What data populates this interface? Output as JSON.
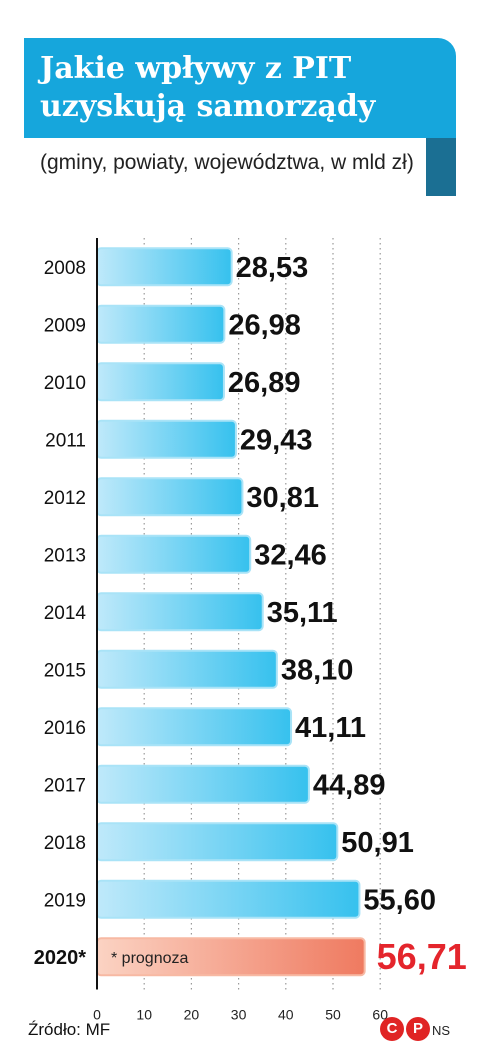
{
  "header": {
    "title": "Jakie wpływy z PIT uzyskują samorządy",
    "subtitle": "(gminy, powiaty, województwa, w mld zł)"
  },
  "chart_data": {
    "type": "bar",
    "orientation": "horizontal",
    "categories": [
      "2008",
      "2009",
      "2010",
      "2011",
      "2012",
      "2013",
      "2014",
      "2015",
      "2016",
      "2017",
      "2018",
      "2019",
      "2020*"
    ],
    "values": [
      28.53,
      26.98,
      26.89,
      29.43,
      30.81,
      32.46,
      35.11,
      38.1,
      41.11,
      44.89,
      50.91,
      55.6,
      56.71
    ],
    "value_labels": [
      "28,53",
      "26,98",
      "26,89",
      "29,43",
      "30,81",
      "32,46",
      "35,11",
      "38,10",
      "41,11",
      "44,89",
      "50,91",
      "55,60",
      "56,71"
    ],
    "x_ticks": [
      0,
      10,
      20,
      30,
      40,
      50,
      60
    ],
    "xlim": [
      0,
      60
    ],
    "grid": "dotted vertical",
    "bar_color": "#3fc3ee",
    "forecast_color": "#f0826a",
    "forecast_label_color": "#e4252c",
    "forecast_note": "* prognoza"
  },
  "footer": {
    "source": "Źródło: MF",
    "logo_c": "C",
    "logo_p": "P",
    "logo_initials": "NS"
  }
}
